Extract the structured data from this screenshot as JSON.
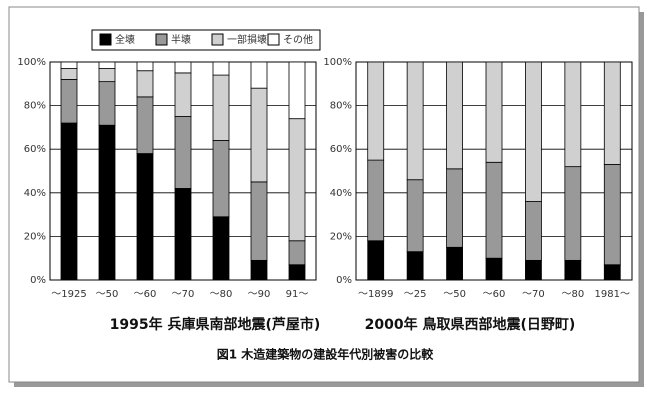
{
  "caption": "図1 木造建築物の建設年代別被害の比較",
  "chart_data": [
    {
      "type": "stacked-bar",
      "title": "1995年 兵庫県南部地震(芦屋市)",
      "categories": [
        "～1925",
        "～50",
        "～60",
        "～70",
        "～80",
        "～90",
        "91～"
      ],
      "series": [
        {
          "name": "全壊",
          "color": "#000000",
          "values": [
            72,
            71,
            58,
            42,
            29,
            9,
            7
          ]
        },
        {
          "name": "半壊",
          "color": "#999999",
          "values": [
            20,
            20,
            26,
            33,
            35,
            36,
            11
          ]
        },
        {
          "name": "一部損壊",
          "color": "#d0d0d0",
          "values": [
            5,
            6,
            12,
            20,
            30,
            43,
            56
          ]
        },
        {
          "name": "その他",
          "color": "#ffffff",
          "values": [
            3,
            3,
            4,
            5,
            6,
            12,
            26
          ]
        }
      ],
      "ylim": [
        0,
        100
      ],
      "yticks": [
        {
          "value": 0,
          "label": "0%"
        },
        {
          "value": 20,
          "label": "20%"
        },
        {
          "value": 40,
          "label": "40%"
        },
        {
          "value": 60,
          "label": "60%"
        },
        {
          "value": 80,
          "label": "80%"
        },
        {
          "value": 100,
          "label": "100%"
        }
      ],
      "grid": true
    },
    {
      "type": "stacked-bar",
      "title": "2000年 鳥取県西部地震(日野町)",
      "categories": [
        "～1899",
        "～25",
        "～50",
        "～60",
        "～70",
        "～80",
        "1981～"
      ],
      "series": [
        {
          "name": "全壊",
          "color": "#000000",
          "values": [
            18,
            13,
            15,
            10,
            9,
            9,
            7
          ]
        },
        {
          "name": "半壊",
          "color": "#999999",
          "values": [
            37,
            33,
            36,
            44,
            27,
            43,
            46
          ]
        },
        {
          "name": "一部損壊",
          "color": "#d0d0d0",
          "values": [
            45,
            54,
            49,
            46,
            64,
            48,
            47
          ]
        }
      ],
      "ylim": [
        0,
        100
      ],
      "yticks": [
        {
          "value": 0,
          "label": "0%"
        },
        {
          "value": 20,
          "label": "20%"
        },
        {
          "value": 40,
          "label": "40%"
        },
        {
          "value": 60,
          "label": "60%"
        },
        {
          "value": 80,
          "label": "80%"
        },
        {
          "value": 100,
          "label": "100%"
        }
      ],
      "grid": true
    }
  ]
}
